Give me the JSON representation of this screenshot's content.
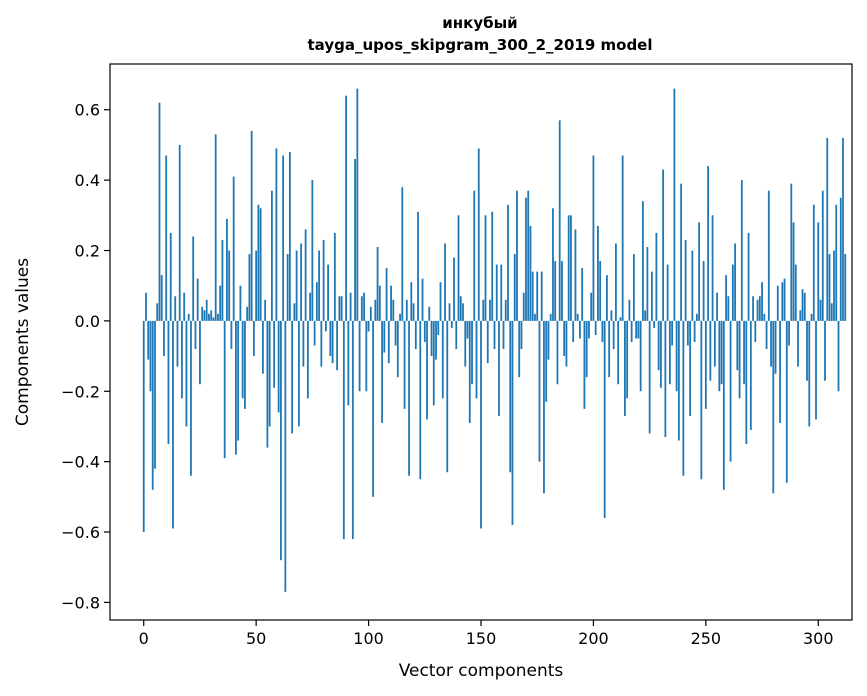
{
  "chart_data": {
    "type": "bar",
    "title": "инкубый",
    "subtitle": "tayga_upos_skipgram_300_2_2019 model",
    "xlabel": "Vector components",
    "ylabel": "Components values",
    "xlim": [
      -15,
      315
    ],
    "ylim": [
      -0.85,
      0.73
    ],
    "xticks": [
      0,
      50,
      100,
      150,
      200,
      250,
      300
    ],
    "yticks": [
      -0.8,
      -0.6,
      -0.4,
      -0.2,
      0.0,
      0.2,
      0.4,
      0.6
    ],
    "ytick_labels": [
      "−0.8",
      "−0.6",
      "−0.4",
      "−0.2",
      "0.0",
      "0.2",
      "0.4",
      "0.6"
    ],
    "grid": false,
    "bar_color": "#1f77b4",
    "values": [
      -0.6,
      0.08,
      -0.11,
      -0.2,
      -0.48,
      -0.42,
      0.05,
      0.62,
      0.13,
      -0.1,
      0.47,
      -0.35,
      0.25,
      -0.59,
      0.07,
      -0.13,
      0.5,
      -0.22,
      0.08,
      -0.3,
      0.02,
      -0.44,
      0.24,
      -0.08,
      0.12,
      -0.18,
      0.04,
      0.03,
      0.06,
      0.02,
      0.03,
      0.01,
      0.53,
      0.02,
      0.1,
      0.23,
      -0.39,
      0.29,
      0.2,
      -0.08,
      0.41,
      -0.38,
      -0.34,
      0.1,
      -0.22,
      -0.25,
      0.04,
      0.19,
      0.54,
      -0.1,
      0.2,
      0.33,
      0.32,
      -0.15,
      0.06,
      -0.36,
      -0.3,
      0.37,
      -0.19,
      0.49,
      -0.26,
      -0.68,
      0.47,
      -0.77,
      0.19,
      0.48,
      -0.32,
      0.05,
      0.2,
      -0.3,
      0.22,
      -0.13,
      0.26,
      -0.22,
      0.08,
      0.4,
      -0.07,
      0.11,
      0.2,
      -0.13,
      0.23,
      -0.03,
      0.16,
      -0.1,
      -0.12,
      0.25,
      -0.14,
      0.07,
      0.07,
      -0.62,
      0.64,
      -0.24,
      0.08,
      -0.62,
      0.46,
      0.66,
      -0.2,
      0.07,
      0.08,
      -0.2,
      -0.03,
      0.04,
      -0.5,
      0.06,
      0.21,
      0.1,
      -0.29,
      -0.09,
      0.15,
      -0.12,
      0.1,
      0.06,
      -0.07,
      -0.16,
      0.02,
      0.38,
      -0.25,
      0.06,
      -0.44,
      0.11,
      0.05,
      -0.08,
      0.31,
      -0.45,
      0.12,
      -0.06,
      -0.28,
      0.04,
      -0.1,
      -0.24,
      -0.11,
      -0.04,
      0.11,
      -0.22,
      0.22,
      -0.43,
      0.05,
      -0.02,
      0.18,
      -0.08,
      0.3,
      0.07,
      0.05,
      -0.13,
      -0.05,
      -0.29,
      -0.18,
      0.37,
      -0.22,
      0.49,
      -0.59,
      0.06,
      0.3,
      -0.12,
      0.06,
      0.31,
      -0.08,
      0.16,
      -0.27,
      0.16,
      -0.08,
      0.06,
      0.33,
      -0.43,
      -0.58,
      0.19,
      0.37,
      -0.16,
      -0.08,
      0.08,
      0.35,
      0.37,
      0.27,
      0.14,
      0.02,
      0.14,
      -0.4,
      0.14,
      -0.49,
      -0.23,
      -0.11,
      0.02,
      0.32,
      0.17,
      -0.18,
      0.57,
      0.17,
      -0.1,
      -0.13,
      0.3,
      0.3,
      -0.06,
      0.26,
      0.02,
      -0.05,
      0.15,
      -0.25,
      -0.16,
      -0.05,
      0.08,
      0.47,
      -0.04,
      0.27,
      0.17,
      -0.06,
      -0.56,
      0.13,
      -0.16,
      0.03,
      -0.08,
      0.22,
      -0.18,
      0.01,
      0.47,
      -0.27,
      -0.22,
      0.06,
      -0.06,
      0.19,
      -0.05,
      -0.05,
      -0.2,
      0.34,
      0.03,
      0.21,
      -0.32,
      0.14,
      -0.02,
      0.25,
      -0.14,
      -0.19,
      0.43,
      -0.33,
      0.16,
      -0.18,
      -0.07,
      0.66,
      -0.2,
      -0.34,
      0.39,
      -0.44,
      0.23,
      -0.07,
      -0.27,
      0.2,
      -0.06,
      0.02,
      0.28,
      -0.45,
      0.17,
      -0.25,
      0.44,
      -0.17,
      0.3,
      -0.13,
      0.08,
      -0.2,
      -0.18,
      -0.48,
      0.13,
      0.07,
      -0.4,
      0.16,
      0.22,
      -0.14,
      -0.22,
      0.4,
      -0.18,
      -0.35,
      0.25,
      -0.31,
      0.07,
      -0.06,
      0.06,
      0.07,
      0.11,
      0.02,
      -0.08,
      0.37,
      -0.13,
      -0.49,
      -0.15,
      0.1,
      -0.29,
      0.11,
      0.12,
      -0.46,
      -0.07,
      0.39,
      0.28,
      0.16,
      -0.13,
      0.03,
      0.09,
      0.08,
      -0.17,
      -0.3,
      0.02,
      0.33,
      -0.28,
      0.28,
      0.06,
      0.37,
      -0.17,
      0.52,
      0.19,
      0.05,
      0.2,
      0.33,
      -0.2,
      0.35,
      0.52,
      0.19
    ]
  }
}
